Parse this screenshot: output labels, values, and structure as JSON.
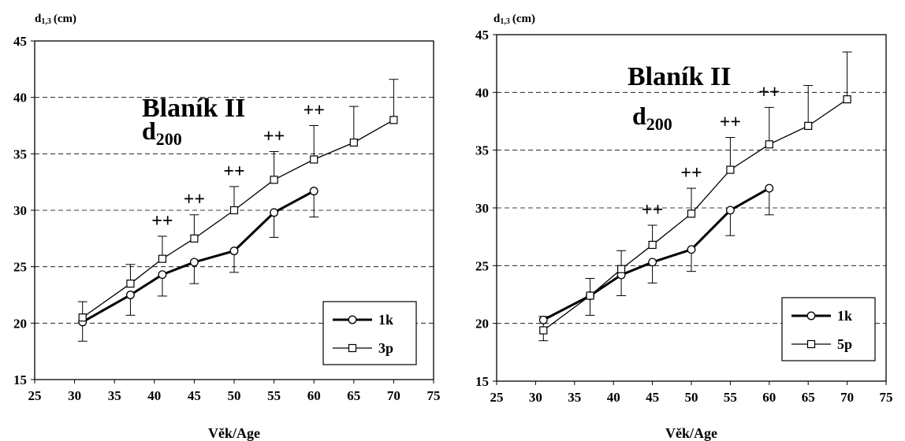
{
  "chart_data": [
    {
      "type": "line",
      "title": "Blaník II",
      "subtitle_main": "d",
      "subtitle_sub": "200",
      "ylabel_main": "d",
      "ylabel_sub": "1,3",
      "ylabel_unit": "(cm)",
      "xlabel": "Věk/Age",
      "xlim": [
        25,
        75
      ],
      "ylim": [
        15,
        45
      ],
      "xticks": [
        "25",
        "30",
        "35",
        "40",
        "45",
        "50",
        "55",
        "60",
        "65",
        "70",
        "75"
      ],
      "yticks": [
        "15",
        "20",
        "25",
        "30",
        "35",
        "40",
        "45"
      ],
      "grid": "horizontal dashed",
      "legend_position": "bottom-right",
      "series": [
        {
          "name": "1k",
          "marker": "circle",
          "line": "thick",
          "x": [
            31,
            37,
            41,
            45,
            50,
            55,
            60
          ],
          "y": [
            20.1,
            22.5,
            24.3,
            25.4,
            26.4,
            29.8,
            31.7
          ],
          "err_low": [
            1.7,
            1.8,
            1.9,
            1.9,
            1.9,
            2.2,
            2.3
          ]
        },
        {
          "name": "3p",
          "marker": "square",
          "line": "thin",
          "x": [
            31,
            37,
            41,
            45,
            50,
            55,
            60,
            65,
            70
          ],
          "y": [
            20.5,
            23.5,
            25.7,
            27.5,
            30.0,
            32.7,
            34.5,
            36.0,
            38.0
          ],
          "err_high": [
            1.4,
            1.7,
            2.0,
            2.1,
            2.1,
            2.5,
            3.0,
            3.2,
            3.6
          ]
        }
      ],
      "annotations": [
        {
          "text": "++",
          "x": 41
        },
        {
          "text": "++",
          "x": 45
        },
        {
          "text": "++",
          "x": 50
        },
        {
          "text": "++",
          "x": 55
        },
        {
          "text": "++",
          "x": 60
        }
      ]
    },
    {
      "type": "line",
      "title": "Blaník II",
      "subtitle_main": "d",
      "subtitle_sub": "200",
      "ylabel_main": "d",
      "ylabel_sub": "1,3",
      "ylabel_unit": "(cm)",
      "xlabel": "Věk/Age",
      "xlim": [
        25,
        75
      ],
      "ylim": [
        15,
        45
      ],
      "xticks": [
        "25",
        "30",
        "35",
        "40",
        "45",
        "50",
        "55",
        "60",
        "65",
        "70",
        "75"
      ],
      "yticks": [
        "15",
        "20",
        "25",
        "30",
        "35",
        "40",
        "45"
      ],
      "grid": "horizontal dashed",
      "legend_position": "bottom-right",
      "series": [
        {
          "name": "1k",
          "marker": "circle",
          "line": "thick",
          "x": [
            31,
            37,
            41,
            45,
            50,
            55,
            60
          ],
          "y": [
            20.3,
            22.4,
            24.2,
            25.3,
            26.4,
            29.8,
            31.7
          ],
          "err_low": [
            0.0,
            1.7,
            1.8,
            1.8,
            1.9,
            2.2,
            2.3
          ]
        },
        {
          "name": "5p",
          "marker": "square",
          "line": "thin",
          "x": [
            31,
            37,
            41,
            45,
            50,
            55,
            60,
            65,
            70
          ],
          "y": [
            19.4,
            22.4,
            24.7,
            26.8,
            29.5,
            33.3,
            35.5,
            37.1,
            39.4
          ],
          "err_high": [
            1.2,
            1.5,
            1.6,
            1.7,
            2.2,
            2.8,
            3.2,
            3.5,
            4.1
          ],
          "err_low": [
            0.9,
            0,
            0,
            0,
            0,
            0,
            0,
            0,
            0
          ]
        }
      ],
      "annotations": [
        {
          "text": "++",
          "x": 45
        },
        {
          "text": "++",
          "x": 50
        },
        {
          "text": "++",
          "x": 55
        },
        {
          "text": "++",
          "x": 60
        }
      ]
    }
  ]
}
